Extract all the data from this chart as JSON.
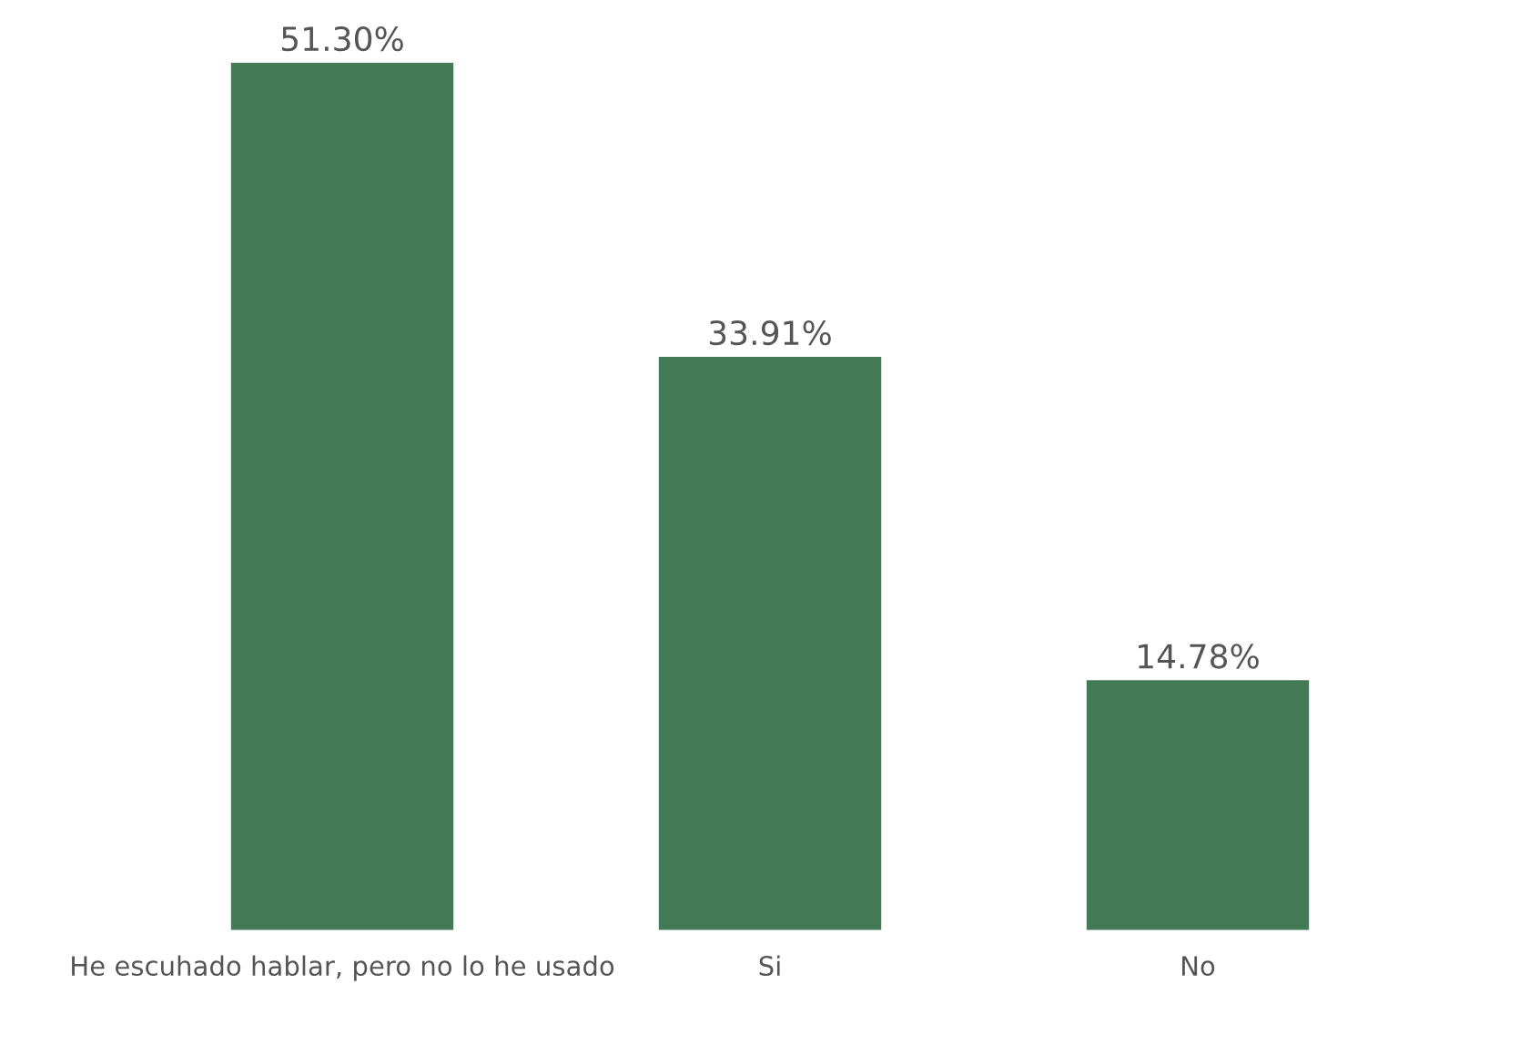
{
  "chart_data": {
    "type": "bar",
    "categories": [
      "He escuhado hablar, pero no lo he usado",
      "Si",
      "No"
    ],
    "values": [
      51.3,
      33.91,
      14.78
    ],
    "value_labels": [
      "51.30%",
      "33.91%",
      "14.78%"
    ],
    "color": "#427a55",
    "grid": false,
    "legend": false
  }
}
